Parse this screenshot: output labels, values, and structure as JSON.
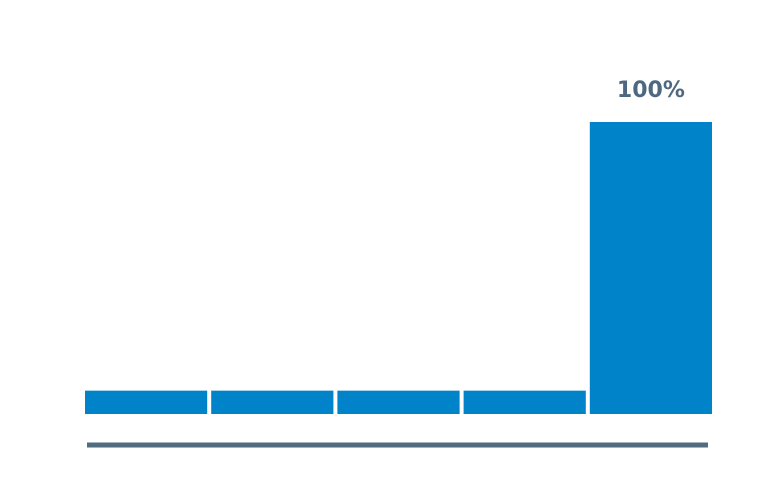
{
  "chart_data": {
    "type": "bar",
    "categories": [
      null,
      null,
      null,
      null,
      null
    ],
    "values": [
      8,
      8,
      8,
      8,
      100
    ],
    "value_labels": [
      null,
      null,
      null,
      null,
      "100%"
    ],
    "color": "#0083c9",
    "ylim": [
      0,
      100
    ]
  }
}
